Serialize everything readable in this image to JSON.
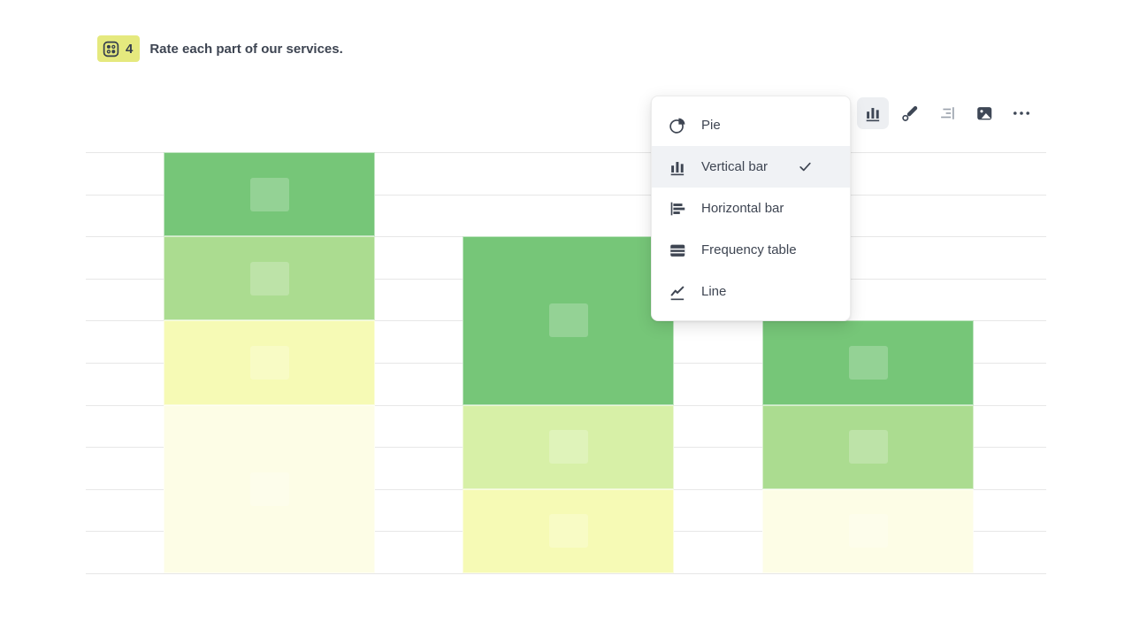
{
  "question": {
    "number": "4",
    "title": "Rate each part of our services."
  },
  "toolbar": {
    "buttons": [
      {
        "id": "chart-type",
        "icon": "vertical-bar-icon",
        "active": true,
        "disabled": false
      },
      {
        "id": "style",
        "icon": "brush-icon",
        "active": false,
        "disabled": false
      },
      {
        "id": "align",
        "icon": "align-right-icon",
        "active": false,
        "disabled": true
      },
      {
        "id": "image",
        "icon": "image-icon",
        "active": false,
        "disabled": false
      },
      {
        "id": "more",
        "icon": "ellipsis-icon",
        "active": false,
        "disabled": false
      }
    ]
  },
  "chart_type_menu": {
    "items": [
      {
        "label": "Pie",
        "icon": "pie-icon",
        "selected": false
      },
      {
        "label": "Vertical bar",
        "icon": "vertical-bar-icon",
        "selected": true
      },
      {
        "label": "Horizontal bar",
        "icon": "horizontal-bar-icon",
        "selected": false
      },
      {
        "label": "Frequency table",
        "icon": "frequency-table-icon",
        "selected": false
      },
      {
        "label": "Line",
        "icon": "line-icon",
        "selected": false
      }
    ]
  },
  "colors": {
    "badge_background": "#e5e97e",
    "text_dark": "#3e4552",
    "menu_highlight": "#f0f2f5",
    "toolbar_active_background": "#edeff2",
    "disabled_icon": "#9aa1ac",
    "gridline": "#e7e7e7"
  },
  "chart_data": {
    "type": "bar",
    "variant": "stacked_vertical",
    "title": "",
    "categories": [
      "",
      "",
      ""
    ],
    "axis_labels_visible": false,
    "gridlines": 11,
    "ylim_grid_units": [
      0,
      10
    ],
    "legend": "none",
    "palette": {
      "green": "#76c678",
      "light_green": "#abdc90",
      "pale_green": "#d7f0a7",
      "yellow": "#f6fab5",
      "cream": "#fdfde6"
    },
    "bars": [
      {
        "total_grid_units": 10,
        "segments": [
          {
            "color": "green",
            "grid_units": 2
          },
          {
            "color": "light_green",
            "grid_units": 2
          },
          {
            "color": "yellow",
            "grid_units": 2
          },
          {
            "color": "cream",
            "grid_units": 4
          }
        ]
      },
      {
        "total_grid_units": 8,
        "segments": [
          {
            "color": "green",
            "grid_units": 4
          },
          {
            "color": "pale_green",
            "grid_units": 2
          },
          {
            "color": "yellow",
            "grid_units": 2
          }
        ]
      },
      {
        "total_grid_units": 6,
        "segments": [
          {
            "color": "green",
            "grid_units": 2
          },
          {
            "color": "light_green",
            "grid_units": 2
          },
          {
            "color": "cream",
            "grid_units": 2
          }
        ]
      }
    ]
  }
}
